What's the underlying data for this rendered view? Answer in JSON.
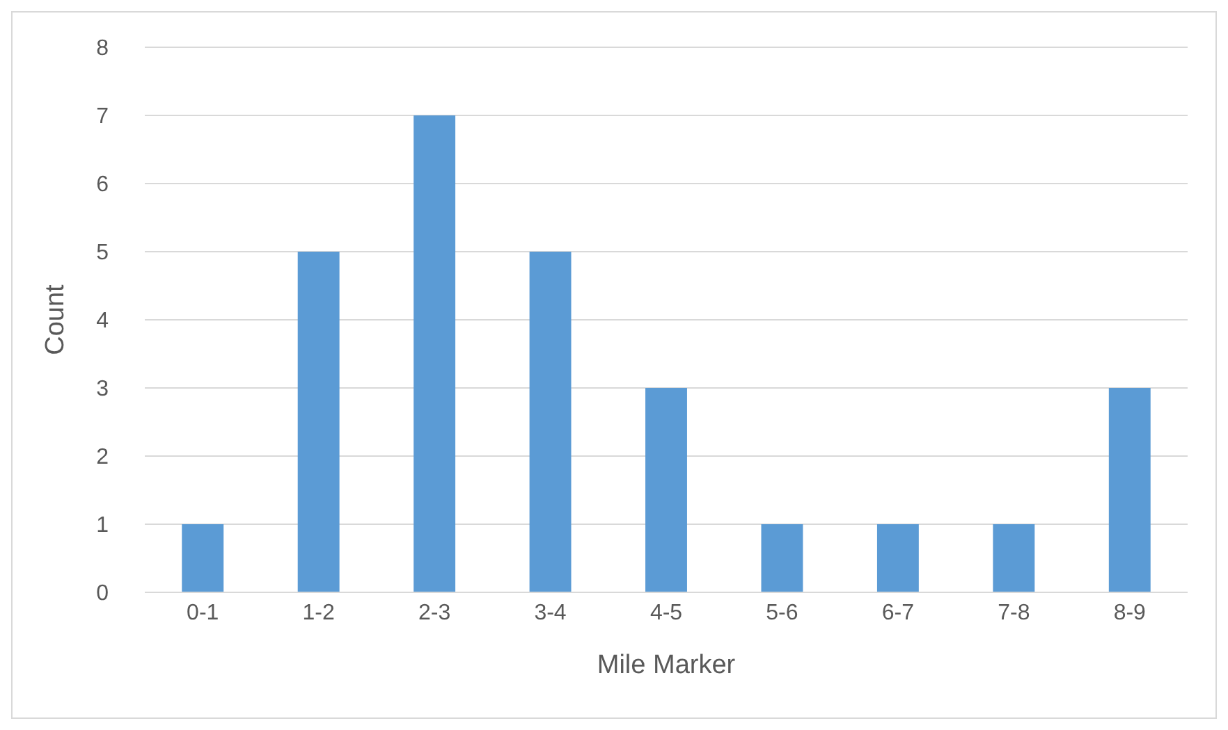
{
  "chart_data": {
    "type": "bar",
    "xlabel": "Mile Marker",
    "ylabel": "Count",
    "categories": [
      "0-1",
      "1-2",
      "2-3",
      "3-4",
      "4-5",
      "5-6",
      "6-7",
      "7-8",
      "8-9"
    ],
    "values": [
      1,
      5,
      7,
      5,
      3,
      1,
      1,
      1,
      3
    ],
    "color": "#5b9bd5",
    "ylim": [
      0,
      8
    ],
    "yticks": [
      0,
      1,
      2,
      3,
      4,
      5,
      6,
      7,
      8
    ],
    "grid": "y"
  }
}
